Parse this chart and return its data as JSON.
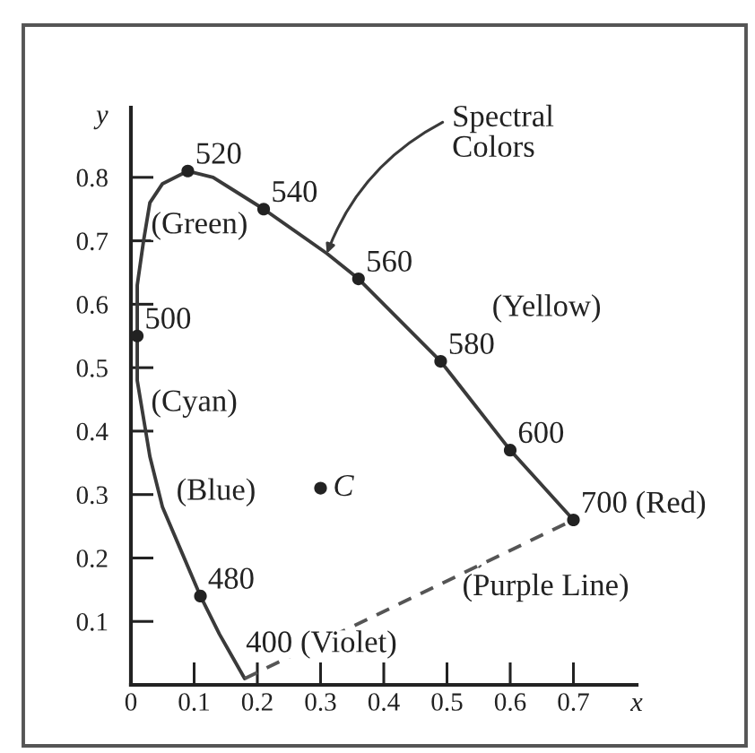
{
  "chart_data": {
    "type": "line",
    "xlabel": "x",
    "ylabel": "y",
    "xlim": [
      0,
      0.8
    ],
    "ylim": [
      0,
      0.91
    ],
    "xticks": [
      0,
      0.1,
      0.2,
      0.3,
      0.4,
      0.5,
      0.6,
      0.7
    ],
    "yticks": [
      0.1,
      0.2,
      0.3,
      0.4,
      0.5,
      0.6,
      0.7,
      0.8
    ],
    "series": [
      {
        "name": "Spectral\nColors",
        "color": "#3a3a3a",
        "x": [
          0.18,
          0.14,
          0.11,
          0.08,
          0.05,
          0.03,
          0.02,
          0.01,
          0.01,
          0.01,
          0.02,
          0.03,
          0.05,
          0.09,
          0.13,
          0.21,
          0.31,
          0.36,
          0.49,
          0.6,
          0.7
        ],
        "values": [
          0.01,
          0.08,
          0.14,
          0.21,
          0.28,
          0.36,
          0.42,
          0.48,
          0.55,
          0.63,
          0.7,
          0.76,
          0.79,
          0.81,
          0.8,
          0.75,
          0.68,
          0.64,
          0.51,
          0.37,
          0.26
        ]
      },
      {
        "name": "(Purple Line)",
        "color": "#555555",
        "line_style": "dashed",
        "x": [
          0.18,
          0.7
        ],
        "values": [
          0.01,
          0.26
        ]
      },
      {
        "type": "scatter",
        "color": "#222222",
        "marker": "circle",
        "x": [
          0.11,
          0.01,
          0.09,
          0.21,
          0.36,
          0.49,
          0.6,
          0.7
        ],
        "values": [
          0.14,
          0.55,
          0.81,
          0.75,
          0.64,
          0.51,
          0.37,
          0.26
        ]
      },
      {
        "type": "scatter",
        "name": "C",
        "color": "#222222",
        "marker": "circle",
        "x": [
          0.3
        ],
        "values": [
          0.31
        ]
      }
    ],
    "annotations": [
      {
        "text": "520",
        "x": 0.09,
        "y": 0.81
      },
      {
        "text": "540",
        "x": 0.21,
        "y": 0.75
      },
      {
        "text": "560",
        "x": 0.36,
        "y": 0.64
      },
      {
        "text": "580",
        "x": 0.49,
        "y": 0.51
      },
      {
        "text": "600",
        "x": 0.6,
        "y": 0.37
      },
      {
        "text": "700 (Red)",
        "x": 0.7,
        "y": 0.26
      },
      {
        "text": "500",
        "x": 0.01,
        "y": 0.55
      },
      {
        "text": "480",
        "x": 0.11,
        "y": 0.14
      },
      {
        "text": "400 (Violet)",
        "x": 0.17,
        "y": 0.04
      },
      {
        "text": "(Green)",
        "x": 0.02,
        "y": 0.7
      },
      {
        "text": "(Cyan)",
        "x": 0.02,
        "y": 0.42
      },
      {
        "text": "(Blue)",
        "x": 0.06,
        "y": 0.28
      },
      "(Yellow)"
    ]
  }
}
